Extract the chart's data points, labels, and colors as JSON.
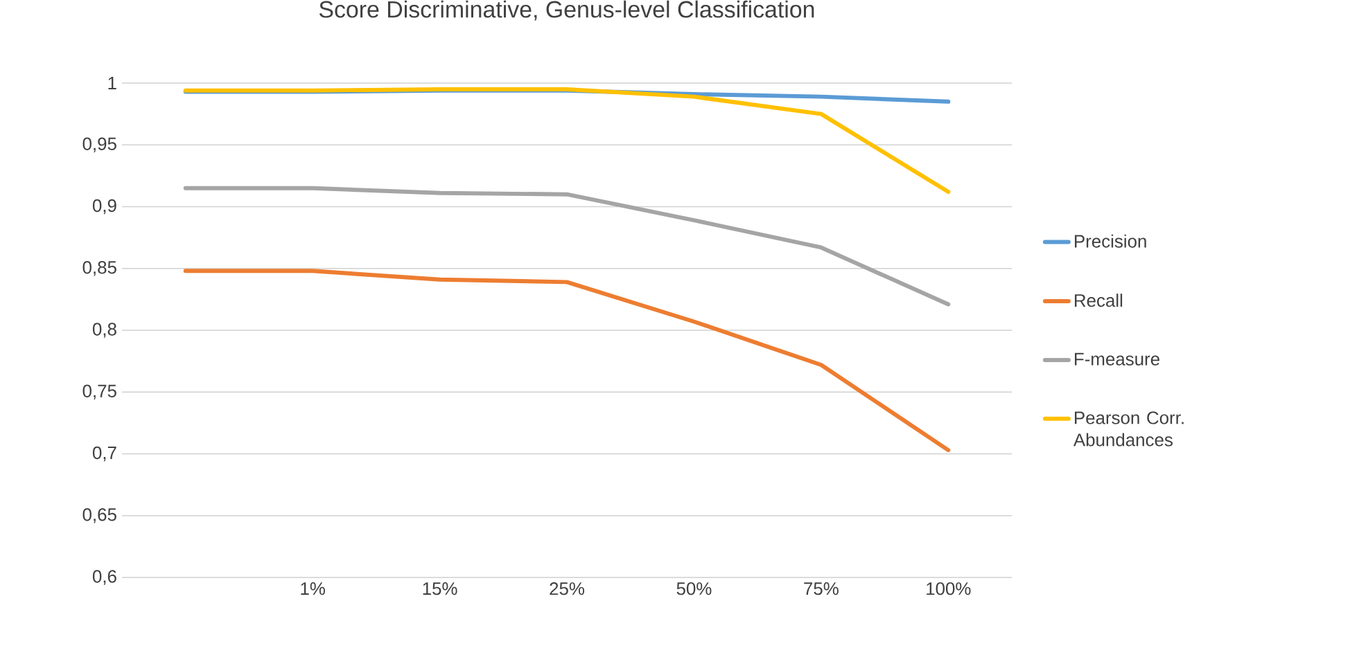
{
  "chart_data": {
    "type": "line",
    "title": "Score Discriminative, Genus-level Classification",
    "categories": [
      null,
      "1%",
      "15%",
      "25%",
      "50%",
      "75%",
      "100%"
    ],
    "series": [
      {
        "name": "Precision",
        "color": "#5b9bd5",
        "values": [
          0.993,
          0.993,
          0.994,
          0.994,
          0.991,
          0.989,
          0.985
        ]
      },
      {
        "name": "Recall",
        "color": "#ed7d31",
        "values": [
          0.848,
          0.848,
          0.841,
          0.839,
          0.807,
          0.772,
          0.703
        ]
      },
      {
        "name": "F-measure",
        "color": "#a5a5a5",
        "values": [
          0.915,
          0.915,
          0.911,
          0.91,
          0.889,
          0.867,
          0.821
        ]
      },
      {
        "name": "Pearson Corr. Abundances",
        "color": "#ffc000",
        "values": [
          0.994,
          0.994,
          0.995,
          0.995,
          0.989,
          0.975,
          0.912
        ]
      }
    ],
    "ylim": [
      0.6,
      1
    ],
    "yticks": [
      {
        "value": 0.6,
        "label": "0,6"
      },
      {
        "value": 0.65,
        "label": "0,65"
      },
      {
        "value": 0.7,
        "label": "0,7"
      },
      {
        "value": 0.75,
        "label": "0,75"
      },
      {
        "value": 0.8,
        "label": "0,8"
      },
      {
        "value": 0.85,
        "label": "0,85"
      },
      {
        "value": 0.9,
        "label": "0,9"
      },
      {
        "value": 0.95,
        "label": "0,95"
      },
      1
    ],
    "grid": "y",
    "legend": "right",
    "marker": "none",
    "line_style": "solid"
  }
}
